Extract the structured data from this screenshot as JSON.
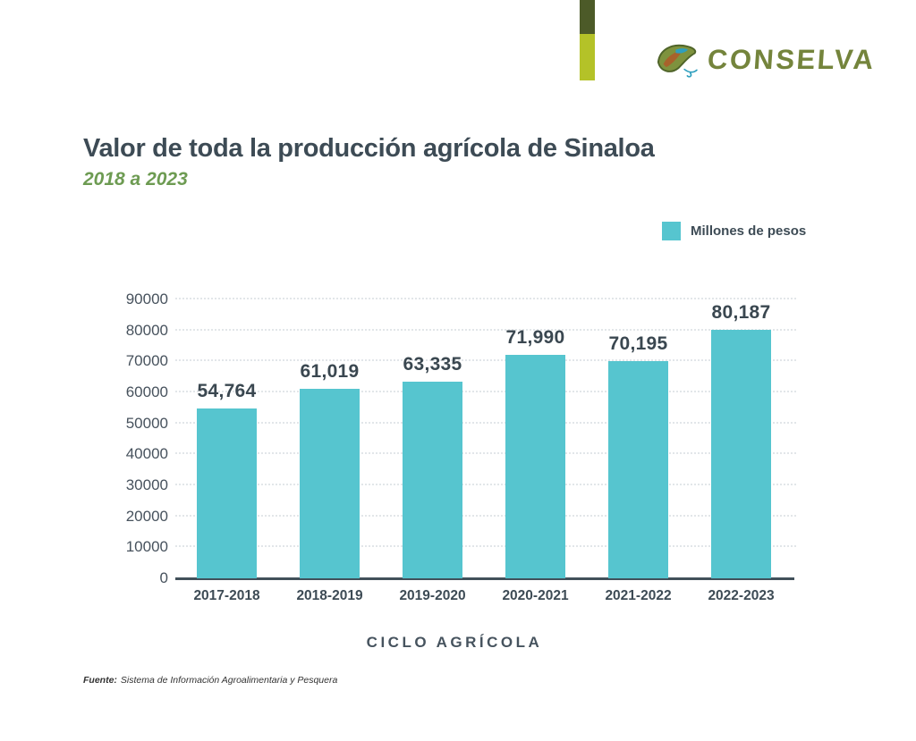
{
  "header": {
    "accent_bar": {
      "dark_color": "#4c5a28",
      "light_color": "#b4c228"
    },
    "logo": {
      "text": "CONSELVA",
      "color": "#74843c",
      "icon": "leaf-icon"
    }
  },
  "title_block": {
    "title": "Valor de toda la producción agrícola de Sinaloa",
    "subtitle": "2018 a 2023",
    "title_color": "#3d4b55",
    "subtitle_color": "#6d9b52"
  },
  "legend": {
    "label": "Millones de pesos",
    "swatch_color": "#56c5cf"
  },
  "chart_data": {
    "type": "bar",
    "title": "Valor de toda la producción agrícola de Sinaloa",
    "subtitle": "2018 a 2023",
    "categories": [
      "2017-2018",
      "2018-2019",
      "2019-2020",
      "2020-2021",
      "2021-2022",
      "2022-2023"
    ],
    "values": [
      54764,
      61019,
      63335,
      71990,
      70195,
      80187
    ],
    "value_labels": [
      "54,764",
      "61,019",
      "63,335",
      "71,990",
      "70,195",
      "80,187"
    ],
    "series_name": "Millones de pesos",
    "xlabel": "CICLO AGRÍCOLA",
    "ylabel": "",
    "ylim": [
      0,
      90000
    ],
    "y_ticks": [
      0,
      10000,
      20000,
      30000,
      40000,
      50000,
      60000,
      70000,
      80000,
      90000
    ],
    "grid": "horizontal-dotted",
    "bar_color": "#56c5cf",
    "legend_position": "top-right"
  },
  "footer": {
    "source_label": "Fuente:",
    "source_text": "Sistema de Información Agroalimentaria y Pesquera"
  }
}
